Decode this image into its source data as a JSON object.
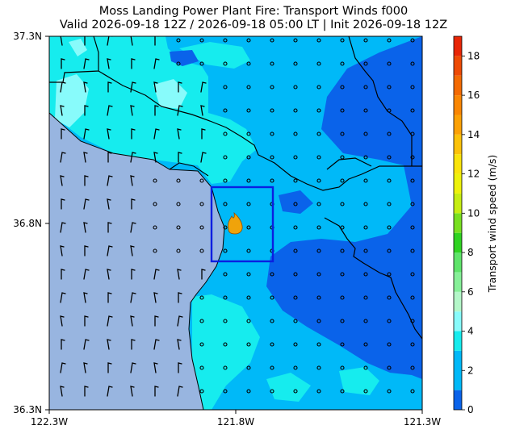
{
  "title_line1": "Moss Landing Power Plant Fire: Transport Winds f000",
  "title_line2": "Valid 2026-09-18 12Z / 2026-09-18 05:00 LT | Init 2026-09-18 12Z",
  "map": {
    "lon_range": [
      -122.3,
      -121.3
    ],
    "lat_range": [
      36.3,
      37.3
    ],
    "x_ticks": [
      "122.3W",
      "121.8W",
      "121.3W"
    ],
    "y_ticks": [
      "37.3N",
      "36.8N",
      "36.3N"
    ],
    "ocean_color": "#98b5e0",
    "fire_icon": "fire-icon",
    "highlight_box_color": "#0b1fe0",
    "wind_barb_symbol": "wind-barb-icon",
    "calm_symbol": "calm-circle-icon"
  },
  "colorbar": {
    "label": "Transport wind speed (m/s)",
    "range": [
      0,
      19
    ],
    "ticks": [
      "0",
      "2",
      "4",
      "6",
      "8",
      "10",
      "12",
      "14",
      "16",
      "18"
    ],
    "levels": [
      {
        "from": 0,
        "to": 1,
        "color": "#0a63ea"
      },
      {
        "from": 1,
        "to": 3,
        "color": "#00b9f8"
      },
      {
        "from": 3,
        "to": 4,
        "color": "#16ecee"
      },
      {
        "from": 4,
        "to": 5,
        "color": "#88fbfb"
      },
      {
        "from": 5,
        "to": 6,
        "color": "#b4f7c9"
      },
      {
        "from": 6,
        "to": 7,
        "color": "#86f098"
      },
      {
        "from": 7,
        "to": 8,
        "color": "#5ee46a"
      },
      {
        "from": 8,
        "to": 9,
        "color": "#2fd321"
      },
      {
        "from": 9,
        "to": 10,
        "color": "#78e020"
      },
      {
        "from": 10,
        "to": 11,
        "color": "#c6ee12"
      },
      {
        "from": 11,
        "to": 12,
        "color": "#eef20a"
      },
      {
        "from": 12,
        "to": 13,
        "color": "#fae40a"
      },
      {
        "from": 13,
        "to": 14,
        "color": "#fcc208"
      },
      {
        "from": 14,
        "to": 15,
        "color": "#fca104"
      },
      {
        "from": 15,
        "to": 16,
        "color": "#fa8602"
      },
      {
        "from": 16,
        "to": 17,
        "color": "#f46a02"
      },
      {
        "from": 17,
        "to": 18,
        "color": "#ee4a04"
      },
      {
        "from": 18,
        "to": 19,
        "color": "#e82606"
      }
    ]
  }
}
